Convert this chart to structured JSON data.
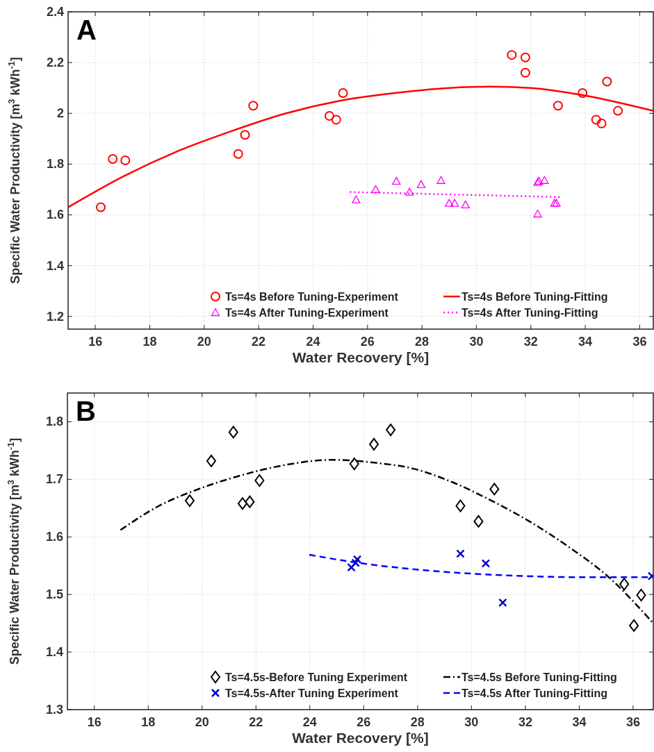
{
  "chart_data": [
    {
      "type": "scatter",
      "xlabel": "Water Recovery [%]",
      "ylabel": "Specific Water Productivity [m$^{3}$ kWh$^{-1}$]",
      "annotations": [
        "A"
      ],
      "xlim": [
        15,
        36.5
      ],
      "ylim": [
        1.15,
        2.4
      ],
      "xticks": [
        16,
        18,
        20,
        22,
        24,
        26,
        28,
        30,
        32,
        34,
        36
      ],
      "yticks": [
        1.2,
        1.4,
        1.6,
        1.8,
        2,
        2.2,
        2.4
      ],
      "grid": true,
      "legend": "bottom right",
      "series": [
        {
          "name": "Ts=4s Before Tuning-Experiment",
          "type": "scatter",
          "marker": "circle",
          "color": "#ff0000",
          "x": [
            16.2,
            16.64,
            17.1,
            21.25,
            21.5,
            21.8,
            24.6,
            24.85,
            25.1,
            31.3,
            31.8,
            31.8,
            33.0,
            33.9,
            34.4,
            34.6,
            34.8,
            35.2
          ],
          "values": [
            1.63,
            1.82,
            1.815,
            1.84,
            1.915,
            2.03,
            1.99,
            1.975,
            2.08,
            2.23,
            2.22,
            2.16,
            2.03,
            2.08,
            1.975,
            1.96,
            2.125,
            2.01
          ]
        },
        {
          "name": "Ts=4s Before Tuning-Fitting",
          "type": "line",
          "line_style": "solid",
          "color": "#ff0000",
          "x": [
            15,
            17,
            19,
            21,
            23,
            25,
            27,
            29,
            30.5,
            32,
            34,
            36.5
          ],
          "values": [
            1.63,
            1.75,
            1.85,
            1.93,
            2.0,
            2.05,
            2.08,
            2.1,
            2.105,
            2.1,
            2.07,
            2.01
          ]
        },
        {
          "name": "Ts=4s After Tuning-Experiment",
          "type": "scatter",
          "marker": "triangle",
          "color": "#ff00ff",
          "x": [
            25.58,
            26.3,
            27.06,
            27.54,
            27.97,
            28.7,
            29.0,
            29.2,
            29.6,
            32.25,
            32.3,
            32.5,
            32.25,
            32.87,
            32.94
          ],
          "values": [
            1.66,
            1.7,
            1.733,
            1.69,
            1.72,
            1.736,
            1.646,
            1.646,
            1.64,
            1.728,
            1.733,
            1.736,
            1.604,
            1.646,
            1.646
          ]
        },
        {
          "name": "Ts=4s After Tuning-Fitting",
          "type": "line",
          "line_style": "dotted",
          "color": "#ff00ff",
          "x": [
            25.35,
            33.15
          ],
          "values": [
            1.69,
            1.67
          ]
        }
      ]
    },
    {
      "type": "scatter",
      "xlabel": "Water Recovery [%]",
      "ylabel": "Specific Water Productivity [m$^{3}$ kWh$^{-1}$]",
      "annotations": [
        "B"
      ],
      "xlim": [
        15,
        36.75
      ],
      "ylim": [
        1.3,
        1.85
      ],
      "xticks": [
        16,
        18,
        20,
        22,
        24,
        26,
        28,
        30,
        32,
        34,
        36
      ],
      "yticks": [
        1.3,
        1.4,
        1.5,
        1.6,
        1.7,
        1.8
      ],
      "grid": true,
      "legend": "bottom right",
      "series": [
        {
          "name": "Ts=4.5s-Before Tuning Experiment",
          "type": "scatter",
          "marker": "diamond",
          "color": "#000000",
          "x": [
            19.54,
            20.34,
            21.16,
            21.5,
            21.77,
            22.13,
            25.65,
            26.38,
            27.0,
            29.59,
            30.26,
            30.85,
            35.67,
            36.3,
            36.03
          ],
          "values": [
            1.663,
            1.732,
            1.782,
            1.658,
            1.661,
            1.698,
            1.727,
            1.761,
            1.786,
            1.654,
            1.627,
            1.683,
            1.518,
            1.499,
            1.446
          ]
        },
        {
          "name": "Ts=4.5s Before Tuning-Fitting",
          "type": "line",
          "line_style": "dashdot",
          "color": "#000000",
          "x": [
            16.97,
            18.4,
            19.86,
            21.3,
            22.75,
            24.9,
            26.4,
            27.8,
            29.3,
            30.7,
            32.15,
            33.6,
            35.05,
            36.75
          ],
          "values": [
            1.612,
            1.654,
            1.683,
            1.705,
            1.722,
            1.734,
            1.729,
            1.719,
            1.695,
            1.664,
            1.627,
            1.583,
            1.532,
            1.45
          ]
        },
        {
          "name": "Ts=4.5s-After Tuning Experiment",
          "type": "scatter",
          "marker": "cross",
          "color": "#0000cc",
          "x": [
            25.54,
            25.76,
            25.7,
            29.59,
            30.53,
            31.16,
            36.7
          ],
          "values": [
            1.547,
            1.561,
            1.555,
            1.571,
            1.554,
            1.486,
            1.532
          ]
        },
        {
          "name": "Ts=4.5s After Tuning-Fitting",
          "type": "line",
          "line_style": "dashed",
          "color": "#0000ff",
          "x": [
            23.98,
            25.65,
            28.54,
            31.43,
            34.32,
            36.75
          ],
          "values": [
            1.569,
            1.556,
            1.541,
            1.533,
            1.53,
            1.53
          ]
        }
      ]
    }
  ]
}
